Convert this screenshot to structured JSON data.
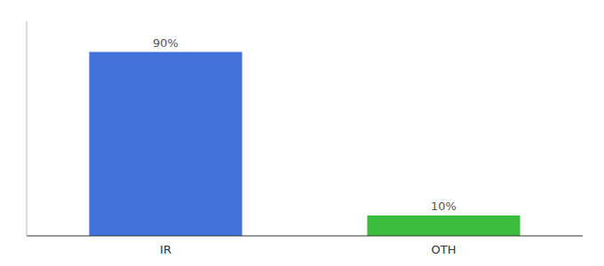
{
  "chart_data": {
    "type": "bar",
    "categories": [
      "IR",
      "OTH"
    ],
    "values": [
      90,
      10
    ],
    "value_labels": [
      "90%",
      "10%"
    ],
    "colors": [
      "#4472db",
      "#3dbb3d"
    ],
    "ylim": [
      0,
      105
    ],
    "data_labels": true,
    "tick_labels": "x",
    "grid": false
  }
}
